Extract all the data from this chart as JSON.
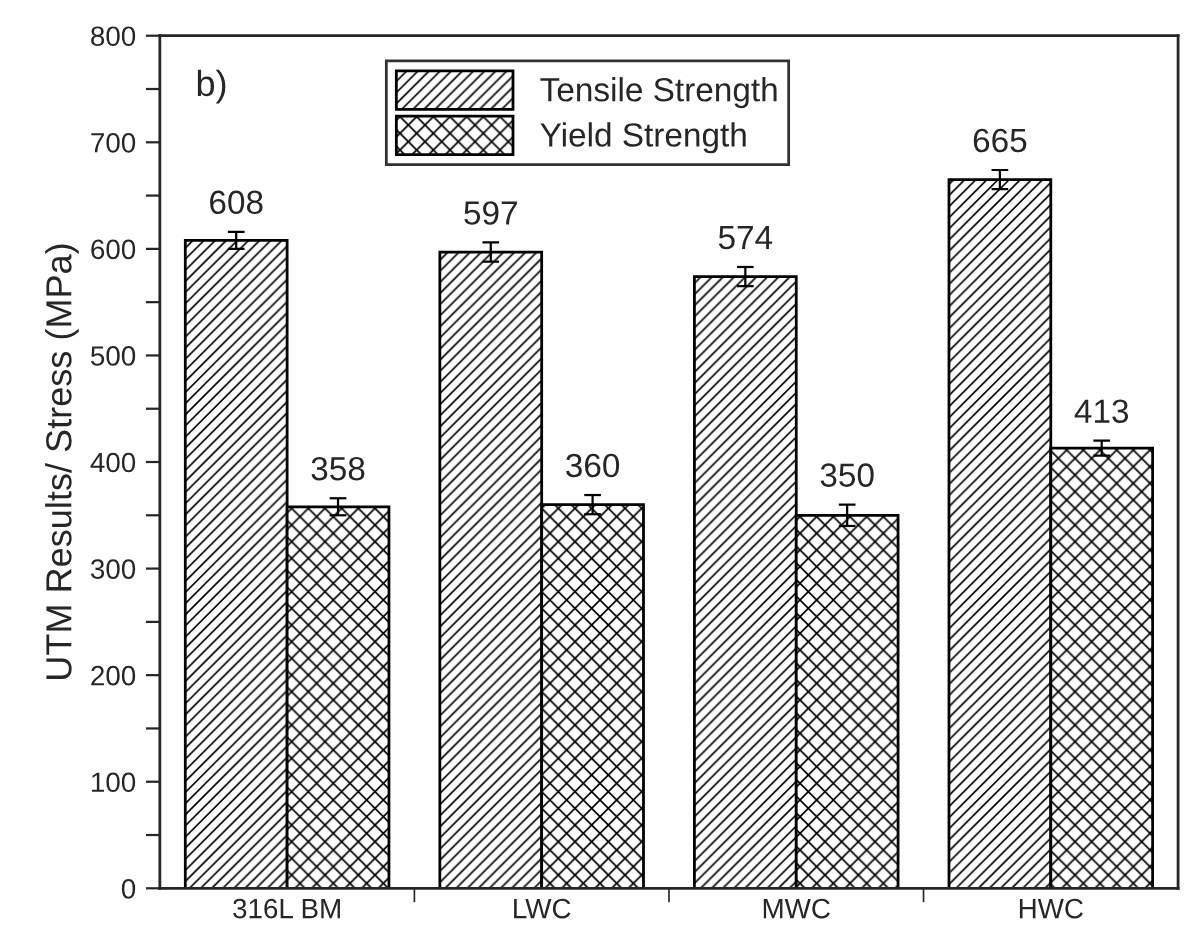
{
  "chart_data": {
    "type": "bar",
    "categories": [
      "316L BM",
      "LWC",
      "MWC",
      "HWC"
    ],
    "series": [
      {
        "name": "Tensile Strength",
        "color": "#000000",
        "values": [
          608,
          597,
          574,
          665
        ],
        "errors": [
          8,
          9,
          9,
          9
        ]
      },
      {
        "name": "Yield Strength",
        "color": "#000000",
        "values": [
          358,
          360,
          350,
          413
        ],
        "errors": [
          8,
          9,
          10,
          7
        ]
      }
    ],
    "ylabel": "UTM Results/ Stress (MPa)",
    "ylim": [
      0,
      800
    ],
    "yticks": [
      0,
      {
        "value": 50,
        "label": null
      },
      100,
      {
        "value": 150,
        "label": null
      },
      200,
      {
        "value": 250,
        "label": null
      },
      300,
      {
        "value": 350,
        "label": null
      },
      400,
      {
        "value": 450,
        "label": null
      },
      500,
      {
        "value": 550,
        "label": null
      },
      600,
      {
        "value": 650,
        "label": null
      },
      700,
      {
        "value": 750,
        "label": null
      },
      800
    ],
    "annotations": [
      "b)"
    ],
    "data_labels": true,
    "legend": "top",
    "grid": false
  }
}
